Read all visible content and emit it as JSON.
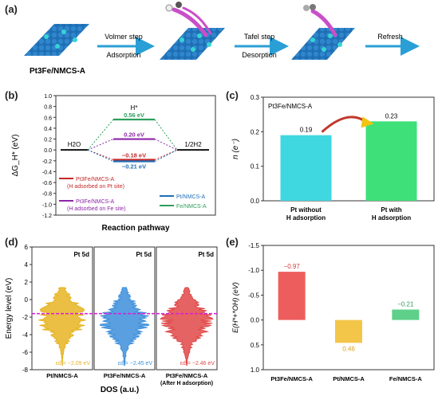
{
  "panels": {
    "a": "(a)",
    "b": "(b)",
    "c": "(c)",
    "d": "(d)",
    "e": "(e)"
  },
  "schematic": {
    "catalyst_label": "Pt3Fe/NMCS-A",
    "steps": [
      {
        "line1": "Volmer step",
        "line2": "Adsorption"
      },
      {
        "line1": "Tafel step",
        "line2": "Desorption"
      },
      {
        "line1": "Refresh",
        "line2": ""
      }
    ],
    "colors": {
      "lattice": "#1f6fb5",
      "atom_cyan": "#36d4d4",
      "ligand": "#c94fc8",
      "arrow": "#2a9fd6"
    }
  },
  "chart_data": [
    {
      "id": "b",
      "type": "line",
      "title": "",
      "xlabel": "Reaction pathway",
      "ylabel": "ΔG_H* (eV)",
      "ylim": [
        -1.2,
        1.0
      ],
      "yticks": [
        "1.0",
        "0.8",
        "0.6",
        "0.4",
        "0.2",
        "0.0",
        "-0.2",
        "-0.4",
        "-0.6",
        "-0.8",
        "-1.0",
        "-1.2"
      ],
      "states": [
        "H2O",
        "H*",
        "1/2H2"
      ],
      "series": [
        {
          "name": "Pt3Fe/NMCS-A (H adsorbed on Pt site)",
          "value": -0.18,
          "label": "−0.18 eV",
          "color": "#c62828"
        },
        {
          "name": "Pt3Fe/NMCS-A (H adsorbed on Fe site)",
          "value": 0.2,
          "label": "0.20 eV",
          "color": "#8e24aa"
        },
        {
          "name": "Pt/NMCS-A",
          "value": -0.21,
          "label": "−0.21 eV",
          "color": "#1e6fb8"
        },
        {
          "name": "Fe/NMCS-A",
          "value": 0.56,
          "label": "0.56 eV",
          "color": "#2e9e5b"
        }
      ],
      "legend": [
        {
          "line1": "Pt3Fe/NMCS-A",
          "line2": "(H adsorbed on Pt site)",
          "color": "#c62828"
        },
        {
          "line1": "Pt3Fe/NMCS-A",
          "line2": "(H adsorbed on Fe site)",
          "color": "#8e24aa"
        },
        {
          "line1": "Pt/NMCS-A",
          "line2": "",
          "color": "#1e6fb8"
        },
        {
          "line1": "Fe/NMCS-A",
          "line2": "",
          "color": "#2e9e5b"
        }
      ],
      "state_labels": {
        "h2o": "H2O",
        "hstar": "H*",
        "h2": "1/2H2"
      }
    },
    {
      "id": "c",
      "type": "bar",
      "annotation": "Pt3Fe/NMCS-A",
      "xlabel": "",
      "ylabel": "n (e⁻)",
      "ylim": [
        0.0,
        0.3
      ],
      "yticks": [
        "0.0",
        "0.1",
        "0.2",
        "0.3"
      ],
      "categories": [
        [
          "Pt without",
          "H adsorption"
        ],
        [
          "Pt with",
          "H adsorption"
        ]
      ],
      "values": [
        0.19,
        0.23
      ],
      "data_labels": [
        "0.19",
        "0.23"
      ],
      "colors": [
        "#3fd7e0",
        "#3ee07a"
      ]
    },
    {
      "id": "d",
      "type": "area",
      "xlabel": "DOS (a.u.)",
      "ylabel": "Energy level (eV)",
      "ylim": [
        -8,
        6
      ],
      "yticks": [
        "6",
        "4",
        "2",
        "0",
        "-2",
        "-4",
        "-6",
        "-8"
      ],
      "fermi_level": -1.6,
      "subplots": [
        {
          "tag": "Pt 5d",
          "label": "Pt/NMCS-A",
          "label2": "",
          "center_label": "εd = −2.09 eV",
          "center": -2.09,
          "color": "#e6b422"
        },
        {
          "tag": "Pt 5d",
          "label": "Pt3Fe/NMCS-A",
          "label2": "",
          "center_label": "εd = −2.45 eV",
          "center": -2.45,
          "color": "#3d8fdb"
        },
        {
          "tag": "Pt 5d",
          "label": "Pt3Fe/NMCS-A",
          "label2": "(After H adsorption)",
          "center_label": "εd = −2.46 eV",
          "center": -2.46,
          "color": "#e04848"
        }
      ]
    },
    {
      "id": "e",
      "type": "bar",
      "xlabel": "",
      "ylabel": "E(H*+*OH) (eV)",
      "ylim": [
        -1.5,
        1.0
      ],
      "yticks": [
        "-1.5",
        "-1.0",
        "-0.5",
        "0.0",
        "0.5",
        "1.0"
      ],
      "categories": [
        "Pt3Fe/NMCS-A",
        "Pt/NMCS-A",
        "Fe/NMCS-A"
      ],
      "values": [
        -0.97,
        0.46,
        -0.21
      ],
      "data_labels": [
        "−0.97",
        "0.46",
        "−0.21"
      ],
      "colors": [
        "#ee5d5d",
        "#f3c64a",
        "#5fd08a"
      ],
      "label_colors": [
        "#d43a3a",
        "#d6a21e",
        "#2e9e5b"
      ]
    }
  ]
}
